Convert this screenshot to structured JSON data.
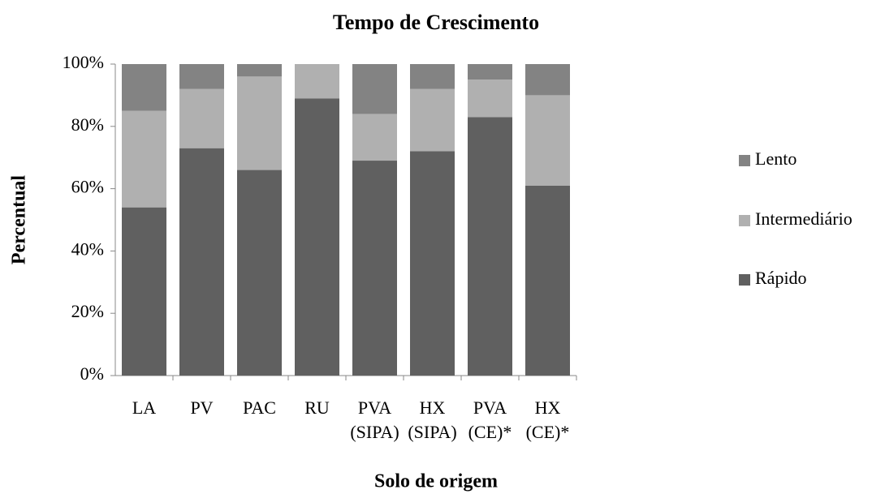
{
  "chart_data": {
    "type": "stacked_bar",
    "title": "Tempo de Crescimento",
    "x_label": "Solo de origem",
    "y_label": "Percentual",
    "categories": [
      "LA",
      "PV",
      "PAC",
      "RU",
      "PVA\n(SIPA)",
      "HX\n(SIPA)",
      "PVA\n(CE)*",
      "HX\n(CE)*"
    ],
    "series": [
      {
        "name": "Rápido",
        "color": "#606060",
        "values": [
          54,
          73,
          66,
          89,
          69,
          72,
          83,
          61
        ]
      },
      {
        "name": "Intermediário",
        "color": "#b0b0b0",
        "values": [
          31,
          19,
          30,
          11,
          15,
          20,
          12,
          29
        ]
      },
      {
        "name": "Lento",
        "color": "#838383",
        "values": [
          15,
          8,
          4,
          0,
          16,
          8,
          5,
          10
        ]
      }
    ],
    "ylim": [
      0,
      100
    ],
    "yticks": [
      {
        "value": 0,
        "label": "0%"
      },
      {
        "value": 20,
        "label": "20%"
      },
      {
        "value": 40,
        "label": "40%"
      },
      {
        "value": 60,
        "label": "60%"
      },
      {
        "value": 80,
        "label": "80%"
      },
      {
        "value": 100,
        "label": "100%"
      }
    ],
    "grid": false,
    "legend": "right"
  }
}
